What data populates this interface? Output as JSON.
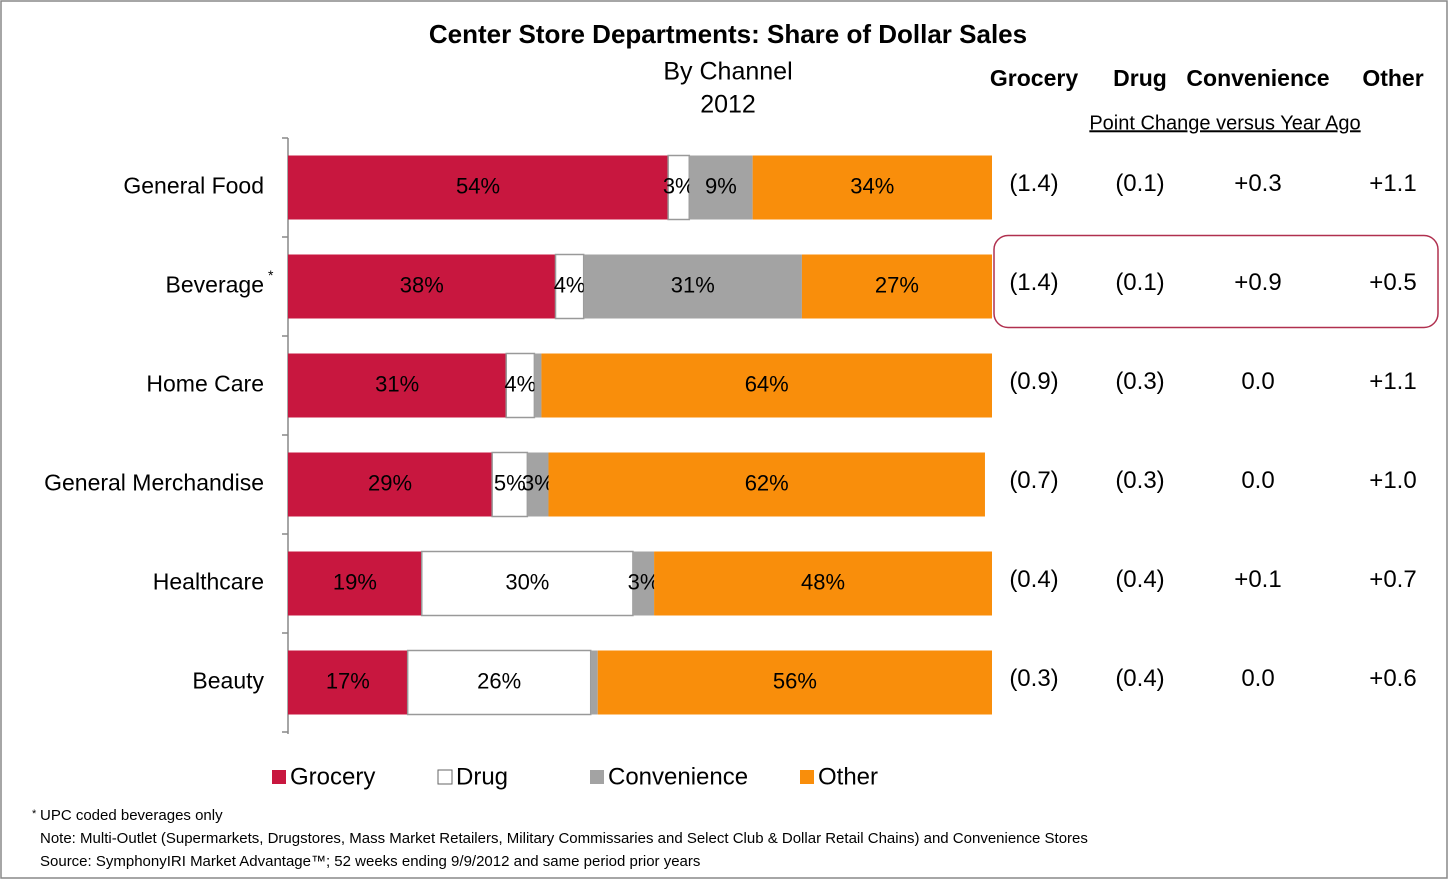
{
  "chart_data": {
    "type": "stacked-barh",
    "title": "Center Store Departments:  Share of Dollar Sales",
    "subtitle": [
      "By Channel",
      "2012"
    ],
    "categories": [
      "General Food",
      "Beverage",
      "Home Care",
      "General Merchandise",
      "Healthcare",
      "Beauty"
    ],
    "xlim": [
      0,
      100
    ],
    "legend": "bottom",
    "series": [
      {
        "name": "Grocery",
        "color": "#c8173f",
        "values": [
          54,
          38,
          31,
          29,
          19,
          17
        ],
        "value_labels": [
          "54%",
          "38%",
          "31%",
          "29%",
          "19%",
          "17%"
        ]
      },
      {
        "name": "Drug",
        "color": "#ffffff",
        "values": [
          3,
          4,
          4,
          5,
          30,
          26
        ],
        "value_labels": [
          "3%",
          "4%",
          "4%",
          "5%",
          "30%",
          "26%"
        ]
      },
      {
        "name": "Convenience",
        "color": "#a3a3a3",
        "values": [
          9,
          31,
          1,
          3,
          3,
          1
        ],
        "value_labels": [
          "9%",
          "31%",
          null,
          "3%",
          "3%",
          null
        ]
      },
      {
        "name": "Other",
        "color": "#f98e0b",
        "values": [
          34,
          27,
          64,
          62,
          48,
          56
        ],
        "value_labels": [
          "34%",
          "27%",
          "64%",
          "62%",
          "48%",
          "56%"
        ]
      }
    ]
  },
  "change_table": {
    "title": "Point Change versus Year Ago",
    "columns": [
      "Grocery",
      "Drug",
      "Convenience",
      "Other"
    ],
    "rows": [
      [
        "(1.4)",
        "(0.1)",
        "+0.3",
        "+1.1"
      ],
      [
        "(1.4)",
        "(0.1)",
        "+0.9",
        "+0.5"
      ],
      [
        "(0.9)",
        "(0.3)",
        "0.0",
        "+1.1"
      ],
      [
        "(0.7)",
        "(0.3)",
        "0.0",
        "+1.0"
      ],
      [
        "(0.4)",
        "(0.4)",
        "+0.1",
        "+0.7"
      ],
      [
        "(0.3)",
        "(0.4)",
        "0.0",
        "+0.6"
      ]
    ],
    "highlight_row": 1
  },
  "footnote_mark": "*",
  "footnote": "UPC coded beverages only",
  "note": "Note:  Multi-Outlet (Supermarkets, Drugstores, Mass Market Retailers, Military Commissaries and Select Club & Dollar Retail Chains) and Convenience Stores",
  "source": "Source:  SymphonyIRI Market Advantage™; 52 weeks ending 9/9/2012 and same period prior years"
}
